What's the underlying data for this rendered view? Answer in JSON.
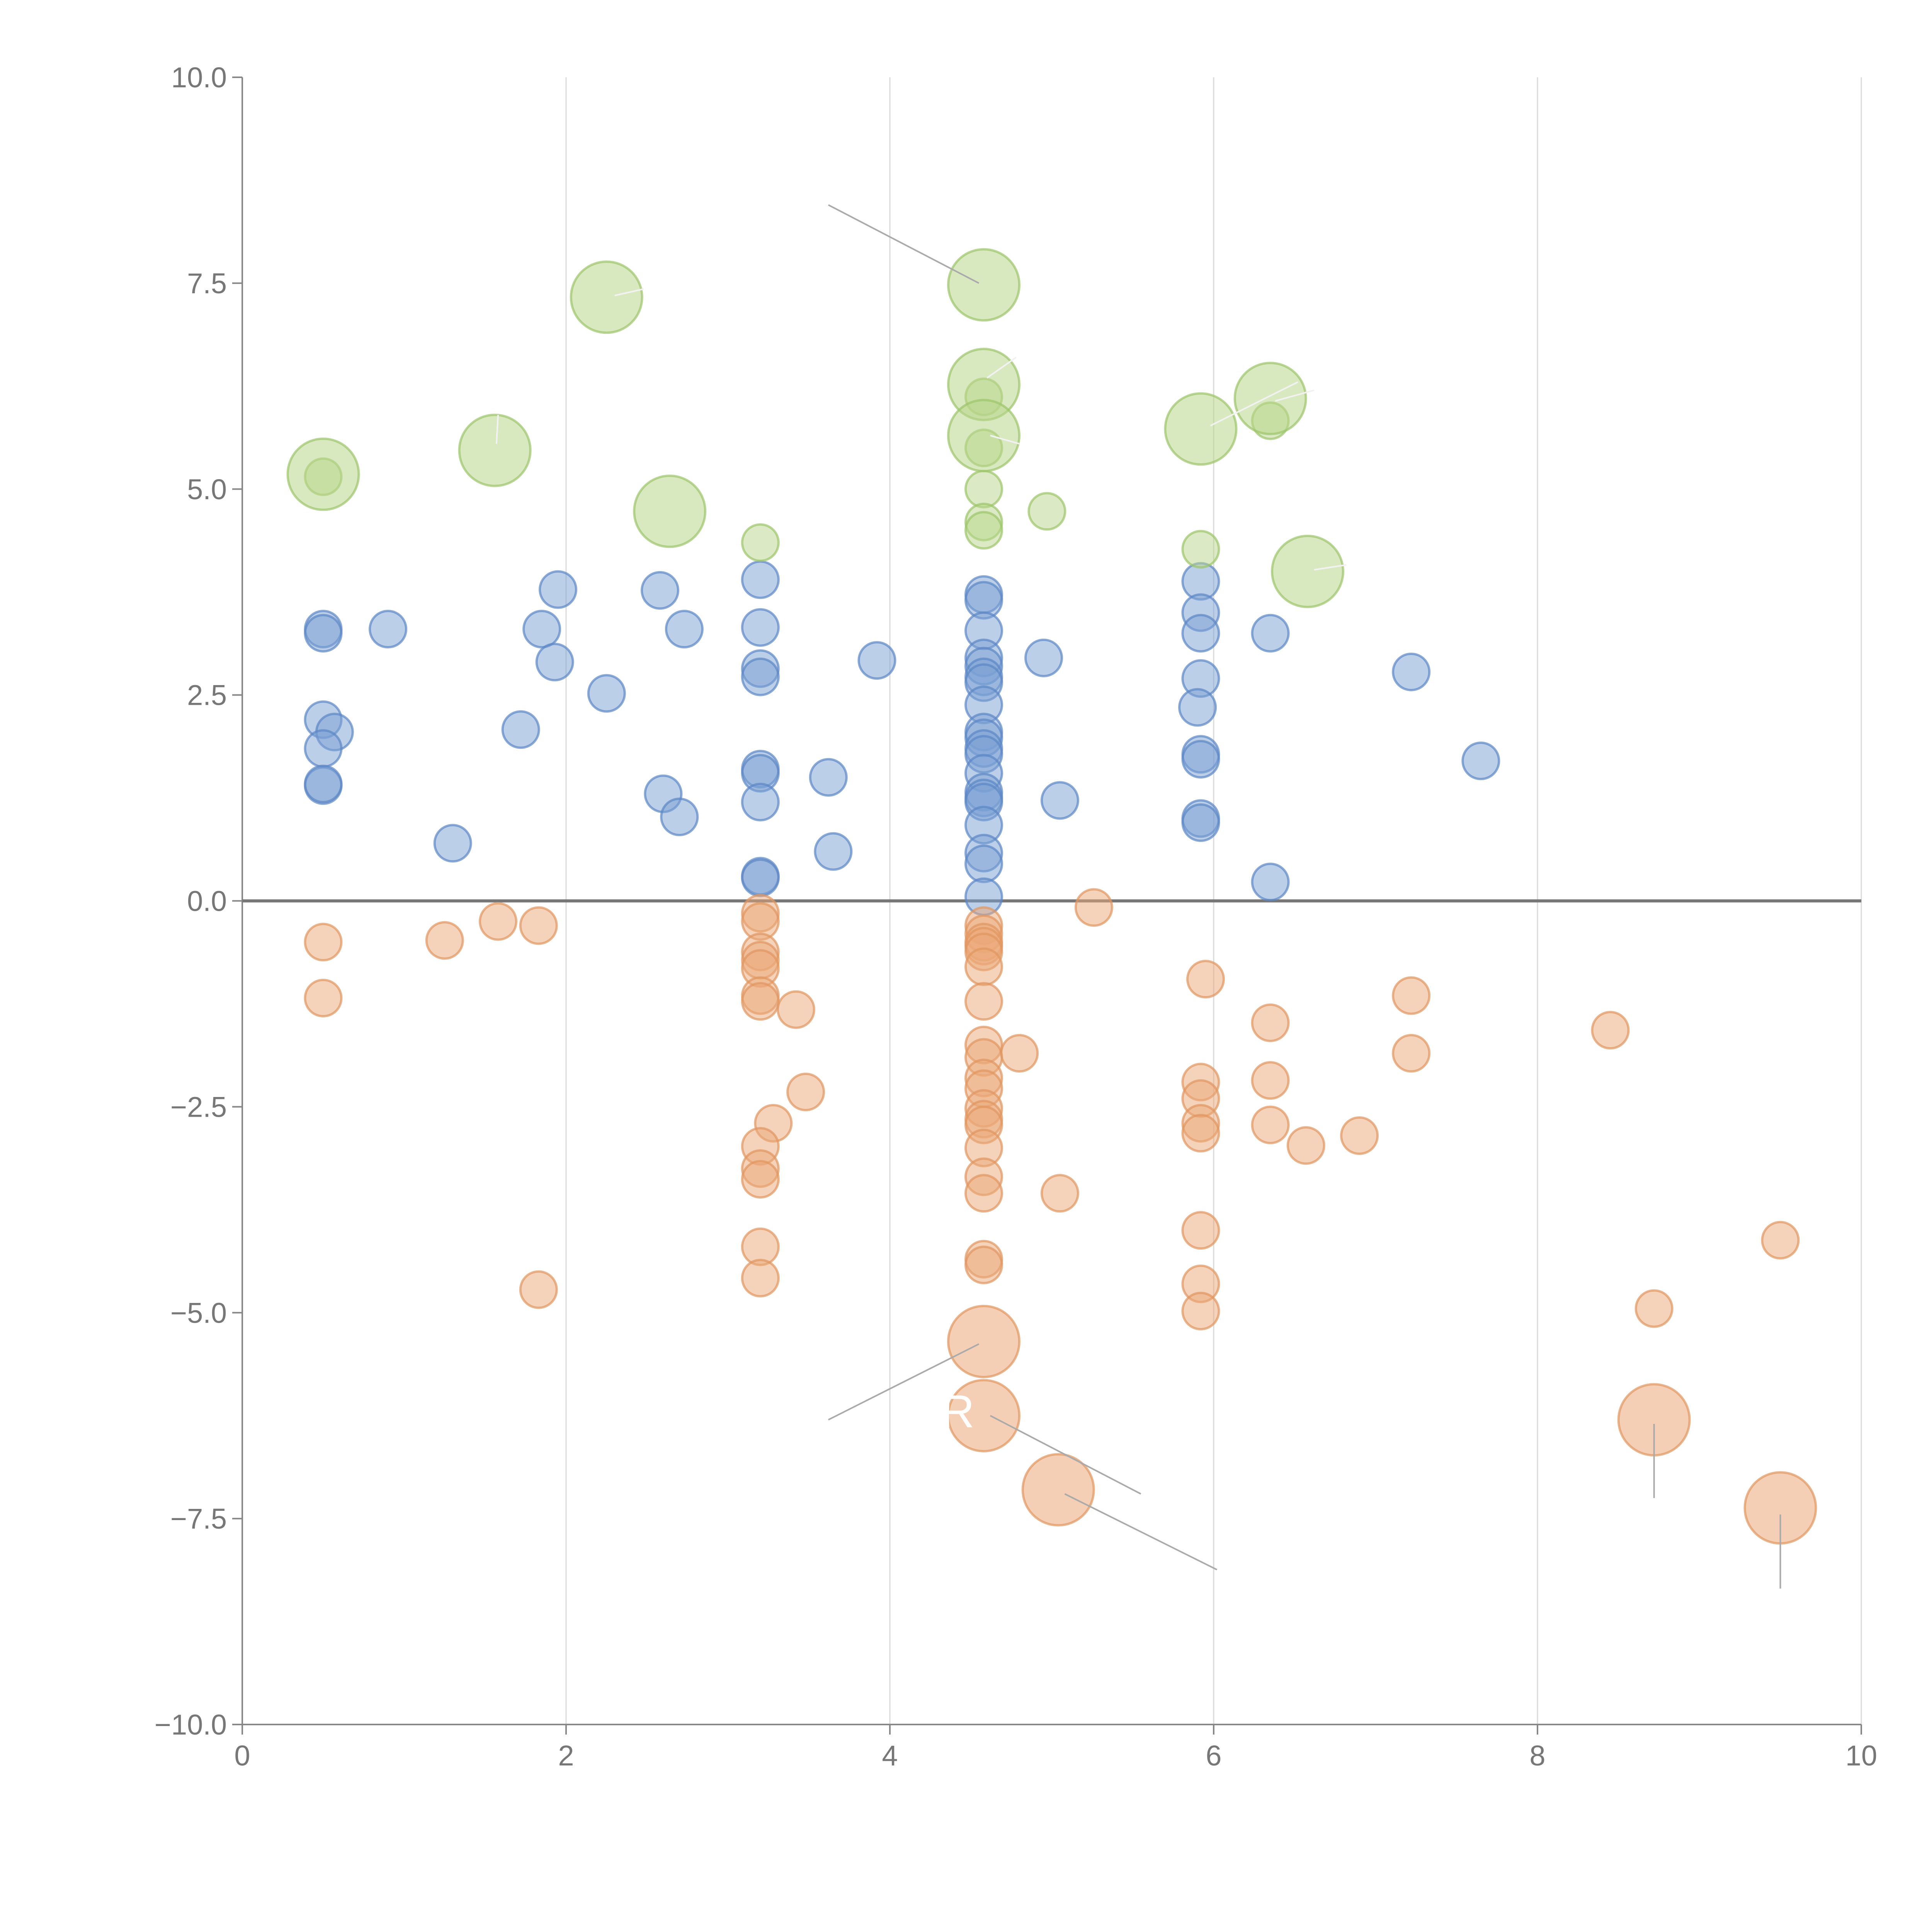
{
  "chart_data": {
    "type": "scatter",
    "variant": "bubble",
    "title": "",
    "xlabel": "",
    "ylabel": "",
    "xlim": [
      0,
      10
    ],
    "ylim": [
      -10,
      10
    ],
    "x_ticks": [
      "0",
      "2",
      "4",
      "6",
      "8",
      "10"
    ],
    "y_ticks": [
      "10.0",
      "7.5",
      "5.0",
      "2.5",
      "0.0",
      "−2.5",
      "−5.0",
      "−7.5",
      "−10.0"
    ],
    "x_tick_values": [
      0,
      2,
      4,
      6,
      8,
      10
    ],
    "y_tick_values": [
      10,
      7.5,
      5,
      2.5,
      0,
      -2.5,
      -5,
      -7.5,
      -10
    ],
    "vertical_grid": true,
    "horizontal_grid": false,
    "zero_line": true,
    "colors": {
      "positive": "#7aa0d4",
      "positive_stroke": "#5b86c4",
      "negative": "#eba878",
      "negative_stroke": "#df9560",
      "highlight": "#b8d68a",
      "highlight_stroke": "#9cc46a",
      "leader_dark": "#aaaaaa",
      "leader_light": "#f2f2f2"
    },
    "series": [
      {
        "name": "positive",
        "points": [
          {
            "x": 0.5,
            "y": 3.3
          },
          {
            "x": 0.5,
            "y": 3.25
          },
          {
            "x": 0.9,
            "y": 3.3
          },
          {
            "x": 0.5,
            "y": 2.2
          },
          {
            "x": 0.57,
            "y": 2.05
          },
          {
            "x": 0.5,
            "y": 1.85
          },
          {
            "x": 0.5,
            "y": 1.4
          },
          {
            "x": 0.5,
            "y": 1.42
          },
          {
            "x": 1.3,
            "y": 0.7
          },
          {
            "x": 1.72,
            "y": 2.08
          },
          {
            "x": 1.85,
            "y": 3.3
          },
          {
            "x": 1.95,
            "y": 3.78
          },
          {
            "x": 1.93,
            "y": 2.9
          },
          {
            "x": 2.25,
            "y": 2.52
          },
          {
            "x": 2.58,
            "y": 3.77
          },
          {
            "x": 2.73,
            "y": 3.3
          },
          {
            "x": 2.6,
            "y": 1.3
          },
          {
            "x": 2.7,
            "y": 1.02
          },
          {
            "x": 3.2,
            "y": 3.9
          },
          {
            "x": 3.2,
            "y": 3.32
          },
          {
            "x": 3.2,
            "y": 2.82
          },
          {
            "x": 3.2,
            "y": 2.72
          },
          {
            "x": 3.2,
            "y": 1.6
          },
          {
            "x": 3.2,
            "y": 1.55
          },
          {
            "x": 3.2,
            "y": 1.2
          },
          {
            "x": 3.2,
            "y": 0.3
          },
          {
            "x": 3.2,
            "y": 0.28
          },
          {
            "x": 3.62,
            "y": 1.5
          },
          {
            "x": 3.65,
            "y": 0.6
          },
          {
            "x": 3.92,
            "y": 2.92
          },
          {
            "x": 4.58,
            "y": 3.72
          },
          {
            "x": 4.58,
            "y": 3.65
          },
          {
            "x": 4.58,
            "y": 3.28
          },
          {
            "x": 4.58,
            "y": 2.95
          },
          {
            "x": 4.58,
            "y": 2.85
          },
          {
            "x": 4.58,
            "y": 2.72
          },
          {
            "x": 4.58,
            "y": 2.65
          },
          {
            "x": 4.58,
            "y": 2.38
          },
          {
            "x": 4.58,
            "y": 2.05
          },
          {
            "x": 4.58,
            "y": 1.98
          },
          {
            "x": 4.58,
            "y": 1.85
          },
          {
            "x": 4.58,
            "y": 1.78
          },
          {
            "x": 4.58,
            "y": 1.55
          },
          {
            "x": 4.58,
            "y": 1.32
          },
          {
            "x": 4.58,
            "y": 1.25
          },
          {
            "x": 4.58,
            "y": 1.2
          },
          {
            "x": 4.58,
            "y": 0.92
          },
          {
            "x": 4.58,
            "y": 0.58
          },
          {
            "x": 4.58,
            "y": 0.45
          },
          {
            "x": 4.58,
            "y": 0.05
          },
          {
            "x": 4.95,
            "y": 2.95
          },
          {
            "x": 5.05,
            "y": 1.22
          },
          {
            "x": 5.92,
            "y": 3.88
          },
          {
            "x": 5.92,
            "y": 3.5
          },
          {
            "x": 5.92,
            "y": 3.25
          },
          {
            "x": 5.92,
            "y": 2.7
          },
          {
            "x": 5.9,
            "y": 2.35
          },
          {
            "x": 5.92,
            "y": 1.78
          },
          {
            "x": 5.92,
            "y": 1.72
          },
          {
            "x": 5.92,
            "y": 1.0
          },
          {
            "x": 5.92,
            "y": 0.95
          },
          {
            "x": 6.35,
            "y": 3.25
          },
          {
            "x": 6.35,
            "y": 0.23
          },
          {
            "x": 7.22,
            "y": 2.78
          },
          {
            "x": 7.65,
            "y": 1.7
          }
        ]
      },
      {
        "name": "negative",
        "points": [
          {
            "x": 0.5,
            "y": -0.5
          },
          {
            "x": 0.5,
            "y": -1.18
          },
          {
            "x": 1.25,
            "y": -0.48
          },
          {
            "x": 1.58,
            "y": -0.25
          },
          {
            "x": 1.83,
            "y": -0.3
          },
          {
            "x": 1.83,
            "y": -4.72
          },
          {
            "x": 3.2,
            "y": -0.15
          },
          {
            "x": 3.2,
            "y": -0.25
          },
          {
            "x": 3.2,
            "y": -0.62
          },
          {
            "x": 3.2,
            "y": -0.72
          },
          {
            "x": 3.2,
            "y": -0.82
          },
          {
            "x": 3.2,
            "y": -1.15
          },
          {
            "x": 3.2,
            "y": -1.22
          },
          {
            "x": 3.42,
            "y": -1.32
          },
          {
            "x": 3.48,
            "y": -2.32
          },
          {
            "x": 3.28,
            "y": -2.7
          },
          {
            "x": 3.2,
            "y": -2.98
          },
          {
            "x": 3.2,
            "y": -3.25
          },
          {
            "x": 3.2,
            "y": -3.38
          },
          {
            "x": 3.2,
            "y": -4.2
          },
          {
            "x": 3.2,
            "y": -4.58
          },
          {
            "x": 4.58,
            "y": -0.3
          },
          {
            "x": 4.58,
            "y": -0.4
          },
          {
            "x": 4.58,
            "y": -0.5
          },
          {
            "x": 4.58,
            "y": -0.55
          },
          {
            "x": 4.58,
            "y": -0.62
          },
          {
            "x": 4.58,
            "y": -0.8
          },
          {
            "x": 4.58,
            "y": -1.22
          },
          {
            "x": 4.58,
            "y": -1.75
          },
          {
            "x": 4.58,
            "y": -1.9
          },
          {
            "x": 4.8,
            "y": -1.85
          },
          {
            "x": 4.58,
            "y": -2.15
          },
          {
            "x": 4.58,
            "y": -2.28
          },
          {
            "x": 4.58,
            "y": -2.52
          },
          {
            "x": 4.58,
            "y": -2.65
          },
          {
            "x": 4.58,
            "y": -2.72
          },
          {
            "x": 4.58,
            "y": -3.0
          },
          {
            "x": 4.58,
            "y": -3.35
          },
          {
            "x": 4.58,
            "y": -3.55
          },
          {
            "x": 4.58,
            "y": -4.35
          },
          {
            "x": 4.58,
            "y": -4.42
          },
          {
            "x": 5.05,
            "y": -3.55
          },
          {
            "x": 5.26,
            "y": -0.08
          },
          {
            "x": 5.95,
            "y": -0.95
          },
          {
            "x": 5.92,
            "y": -2.2
          },
          {
            "x": 5.92,
            "y": -2.4
          },
          {
            "x": 5.92,
            "y": -2.7
          },
          {
            "x": 5.92,
            "y": -2.82
          },
          {
            "x": 5.92,
            "y": -4.0
          },
          {
            "x": 5.92,
            "y": -4.65
          },
          {
            "x": 5.92,
            "y": -4.98
          },
          {
            "x": 6.35,
            "y": -1.48
          },
          {
            "x": 6.35,
            "y": -2.18
          },
          {
            "x": 6.35,
            "y": -2.72
          },
          {
            "x": 6.57,
            "y": -2.97
          },
          {
            "x": 6.9,
            "y": -2.85
          },
          {
            "x": 7.22,
            "y": -1.15
          },
          {
            "x": 7.22,
            "y": -1.85
          },
          {
            "x": 8.45,
            "y": -1.57
          },
          {
            "x": 8.72,
            "y": -4.95
          },
          {
            "x": 9.5,
            "y": -4.12
          }
        ]
      },
      {
        "name": "positive-highlight",
        "points": [
          {
            "x": 0.5,
            "y": 5.15
          },
          {
            "x": 3.2,
            "y": 4.35
          },
          {
            "x": 4.58,
            "y": 6.12
          },
          {
            "x": 4.58,
            "y": 5.5
          },
          {
            "x": 4.58,
            "y": 5.0
          },
          {
            "x": 4.58,
            "y": 4.6
          },
          {
            "x": 4.58,
            "y": 4.5
          },
          {
            "x": 4.97,
            "y": 4.73
          },
          {
            "x": 5.92,
            "y": 4.27
          },
          {
            "x": 6.35,
            "y": 5.83
          }
        ]
      }
    ],
    "labeled_points": [
      {
        "name": "pos-big-1",
        "group": "positive",
        "x": 0.5,
        "y": 5.18,
        "size": "large",
        "label": ""
      },
      {
        "name": "pos-big-2",
        "group": "positive",
        "x": 1.56,
        "y": 5.47,
        "size": "large",
        "label": ""
      },
      {
        "name": "pos-big-3",
        "group": "positive",
        "x": 2.25,
        "y": 7.33,
        "size": "large",
        "label": ""
      },
      {
        "name": "pos-big-4",
        "group": "positive",
        "x": 2.64,
        "y": 4.73,
        "size": "large",
        "label": ""
      },
      {
        "name": "pos-big-5",
        "group": "positive",
        "x": 4.58,
        "y": 7.48,
        "size": "large",
        "label": ""
      },
      {
        "name": "pos-big-6",
        "group": "positive",
        "x": 4.58,
        "y": 6.27,
        "size": "large",
        "label": ""
      },
      {
        "name": "pos-big-7",
        "group": "positive",
        "x": 4.58,
        "y": 5.65,
        "size": "large",
        "label": ""
      },
      {
        "name": "pos-big-8",
        "group": "positive",
        "x": 5.92,
        "y": 5.73,
        "size": "large",
        "label": ""
      },
      {
        "name": "pos-big-9",
        "group": "positive",
        "x": 6.35,
        "y": 6.1,
        "size": "large",
        "label": ""
      },
      {
        "name": "pos-big-10",
        "group": "positive",
        "x": 6.58,
        "y": 4.0,
        "size": "large",
        "label": ""
      },
      {
        "name": "neg-big-1",
        "group": "negative",
        "x": 4.58,
        "y": -5.35,
        "size": "large",
        "label": ""
      },
      {
        "name": "neg-big-2",
        "group": "negative",
        "x": 4.58,
        "y": -6.25,
        "size": "large",
        "label": "R"
      },
      {
        "name": "neg-big-3",
        "group": "negative",
        "x": 5.04,
        "y": -7.15,
        "size": "large",
        "label": ""
      },
      {
        "name": "neg-big-4",
        "group": "negative",
        "x": 8.72,
        "y": -6.3,
        "size": "large",
        "label": ""
      },
      {
        "name": "neg-big-5",
        "group": "negative",
        "x": 9.5,
        "y": -7.37,
        "size": "large",
        "label": ""
      }
    ],
    "leader_lines": [
      {
        "color": "dark",
        "x1": 3.62,
        "y1": 8.45,
        "x2": 4.55,
        "y2": 7.5
      },
      {
        "color": "light",
        "x1": 2.3,
        "y1": 7.35,
        "x2": 2.48,
        "y2": 7.43
      },
      {
        "color": "light",
        "x1": 1.57,
        "y1": 5.55,
        "x2": 1.58,
        "y2": 5.9
      },
      {
        "color": "light",
        "x1": 4.6,
        "y1": 6.35,
        "x2": 4.78,
        "y2": 6.6
      },
      {
        "color": "light",
        "x1": 4.62,
        "y1": 5.65,
        "x2": 4.8,
        "y2": 5.55
      },
      {
        "color": "light",
        "x1": 5.98,
        "y1": 5.77,
        "x2": 6.52,
        "y2": 6.3
      },
      {
        "color": "light",
        "x1": 6.38,
        "y1": 6.07,
        "x2": 6.62,
        "y2": 6.2
      },
      {
        "color": "light",
        "x1": 6.62,
        "y1": 4.02,
        "x2": 6.82,
        "y2": 4.08
      },
      {
        "color": "dark",
        "x1": 3.62,
        "y1": -6.3,
        "x2": 4.55,
        "y2": -5.38
      },
      {
        "color": "dark",
        "x1": 4.62,
        "y1": -6.25,
        "x2": 5.55,
        "y2": -7.2
      },
      {
        "color": "dark",
        "x1": 5.08,
        "y1": -7.2,
        "x2": 6.02,
        "y2": -8.12
      },
      {
        "color": "dark",
        "x1": 8.72,
        "y1": -6.35,
        "x2": 8.72,
        "y2": -7.25
      },
      {
        "color": "dark",
        "x1": 9.5,
        "y1": -7.45,
        "x2": 9.5,
        "y2": -8.35
      }
    ]
  }
}
